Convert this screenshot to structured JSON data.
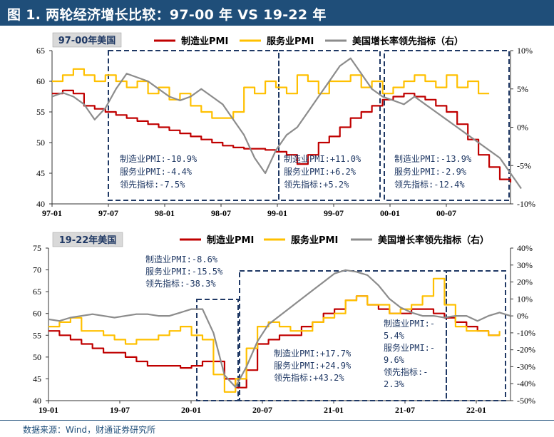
{
  "figure_title": "图 1. 两轮经济增长比较：97-00 年 VS 19-22 年",
  "source": "数据来源：Wind，财通证券研究所",
  "colors": {
    "manufacturing": "#c00000",
    "services": "#ffc000",
    "leading": "#8c8c8c",
    "box": "#1f3864",
    "title_bg": "#1f4e79",
    "label_bg": "#d9d9d9"
  },
  "chart_data": [
    {
      "type": "line",
      "title": "97-00年美国",
      "x_ticks": [
        "97-01",
        "97-07",
        "98-01",
        "98-07",
        "99-01",
        "99-07",
        "00-01",
        "00-07"
      ],
      "ylim": [
        40,
        65
      ],
      "y_ticks": [
        "40",
        "45",
        "50",
        "55",
        "60",
        "65"
      ],
      "y2lim": [
        -10,
        10
      ],
      "y2_ticks": [
        "-10%",
        "-5%",
        "0%",
        "5%",
        "10%"
      ],
      "legend": [
        "制造业PMI",
        "服务业PMI",
        "美国增长率领先指标（右）"
      ],
      "series": [
        {
          "name": "制造业PMI",
          "axis": "left",
          "x_start": 0,
          "values": [
            58,
            58.5,
            58,
            56,
            55.5,
            55,
            54.5,
            54,
            53.5,
            53,
            52.5,
            52,
            51.5,
            51,
            50.5,
            50,
            49.5,
            49.2,
            49,
            49,
            48.8,
            48.5,
            48,
            46.5,
            48,
            50,
            51,
            52.5,
            54,
            55,
            56,
            57,
            57.5,
            58,
            57.5,
            57,
            56,
            55,
            53,
            50.5,
            48,
            46,
            44,
            43.5
          ]
        },
        {
          "name": "服务业PMI",
          "axis": "left",
          "x_start": 0,
          "values": [
            60,
            61,
            62,
            61,
            60,
            61,
            60,
            59,
            60,
            58,
            59,
            57,
            58,
            56,
            55,
            54,
            54,
            55,
            59,
            58,
            60,
            59,
            58,
            61,
            60,
            58,
            60,
            60,
            61,
            59,
            60,
            58,
            59,
            60,
            61,
            60,
            59,
            61,
            59,
            60,
            58,
            58
          ]
        },
        {
          "name": "美国增长率领先指标（右）",
          "axis": "right",
          "x_start": 0,
          "values": [
            4,
            4.5,
            4,
            3,
            1,
            2.5,
            5,
            7,
            6.5,
            6,
            5,
            4,
            3.5,
            4,
            5,
            4,
            3,
            1,
            -1,
            -4,
            -6,
            -3,
            -1,
            0,
            2,
            4,
            6,
            8,
            9,
            7,
            5,
            4,
            3.5,
            3,
            4,
            3,
            2,
            1,
            0,
            -1,
            -2,
            -3,
            -4,
            -6,
            -8
          ]
        }
      ],
      "annotations": [
        {
          "lines": [
            "制造业PMI:-10.9%",
            "服务业PMI:-4.4%",
            "领先指标:-7.5%"
          ]
        },
        {
          "lines": [
            "制造业PMI:+11.0%",
            "服务业PMI:+6.2%",
            "领先指标:+5.2%"
          ]
        },
        {
          "lines": [
            "制造业PMI:-13.9%",
            "服务业PMI:-2.9%",
            "领先指标:-12.4%"
          ]
        }
      ]
    },
    {
      "type": "line",
      "title": "19-22年美国",
      "x_ticks": [
        "19-01",
        "19-07",
        "20-01",
        "20-07",
        "21-01",
        "21-07",
        "22-01"
      ],
      "ylim": [
        40,
        75
      ],
      "y_ticks": [
        "40",
        "45",
        "50",
        "55",
        "60",
        "65",
        "70",
        "75"
      ],
      "y2lim": [
        -50,
        40
      ],
      "y2_ticks": [
        "-50%",
        "-40%",
        "-30%",
        "-20%",
        "-10%",
        "0%",
        "10%",
        "20%",
        "30%",
        "40%"
      ],
      "legend": [
        "制造业PMI",
        "服务业PMI",
        "美国增长率领先指标（右）"
      ],
      "series": [
        {
          "name": "制造业PMI",
          "axis": "left",
          "x_start": 0,
          "values": [
            56,
            55,
            54,
            53,
            52,
            51,
            51,
            50,
            49,
            48,
            48,
            48,
            47.5,
            48,
            49,
            49,
            45,
            43,
            47,
            53,
            54,
            55,
            55,
            57,
            58,
            60,
            61,
            63,
            64,
            62,
            61,
            60,
            60,
            61,
            61,
            60,
            59,
            58,
            57,
            56,
            55,
            55
          ]
        },
        {
          "name": "服务业PMI",
          "axis": "left",
          "x_start": 0,
          "values": [
            57,
            58,
            59,
            56,
            56,
            55,
            54,
            53,
            54,
            54,
            55,
            56,
            57,
            55,
            54,
            46,
            42,
            45,
            52,
            57,
            58,
            57,
            56,
            56,
            58,
            59,
            60,
            63,
            64,
            62,
            62,
            60,
            61,
            62,
            64,
            68,
            62,
            57,
            56,
            56,
            55,
            56
          ]
        },
        {
          "name": "美国增长率领先指标（右）",
          "axis": "right",
          "x_start": 0,
          "values": [
            -2,
            -3,
            -1,
            0,
            1,
            0,
            -1,
            0,
            1,
            1,
            0,
            0,
            2,
            4,
            4,
            -10,
            -35,
            -42,
            -30,
            -15,
            -5,
            0,
            5,
            10,
            15,
            20,
            25,
            27,
            26,
            24,
            18,
            10,
            5,
            2,
            0,
            0,
            -1,
            0,
            0,
            -3,
            0,
            2,
            0
          ]
        }
      ],
      "annotations": [
        {
          "lines": [
            "制造业PMI:-8.6%",
            "服务业PMI:-15.5%",
            "领先指标:-38.3%"
          ]
        },
        {
          "lines": [
            "制造业PMI:+17.7%",
            "服务业PMI:+24.9%",
            "领先指标:+43.2%"
          ]
        },
        {
          "lines": [
            "制造业PMI:-",
            "5.4%",
            "服务业PMI:-",
            "9.6%",
            "领先指标:-",
            "2.3%"
          ]
        }
      ]
    }
  ]
}
